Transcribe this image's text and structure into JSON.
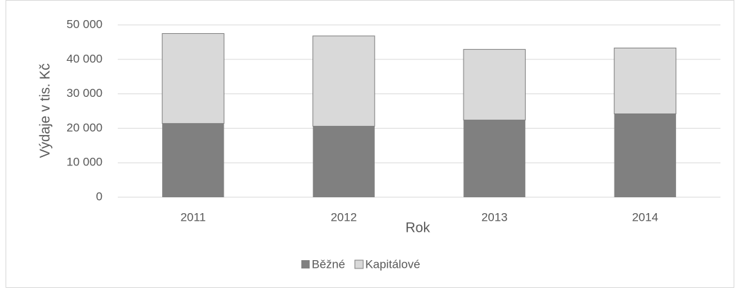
{
  "chart_data": {
    "type": "stacked_bar",
    "y_label": "Výdaje v tis. Kč",
    "x_label": "Rok",
    "categories": [
      "2011",
      "2012",
      "2013",
      "2014"
    ],
    "series": [
      {
        "name": "Běžné",
        "color": "#808080",
        "values": [
          21400,
          20600,
          22400,
          24200
        ]
      },
      {
        "name": "Kapitálové",
        "color": "#d9d9d9",
        "values": [
          26100,
          26200,
          20500,
          19100
        ]
      }
    ],
    "ylim": [
      0,
      50000
    ],
    "yticks": [
      0,
      {
        "value": 10000,
        "label": "10 000"
      },
      {
        "value": 20000,
        "label": "20 000"
      },
      {
        "value": 30000,
        "label": "30 000"
      },
      {
        "value": 40000,
        "label": "40 000"
      },
      {
        "value": 50000,
        "label": "50 000"
      }
    ],
    "grid": true,
    "legend": "bottom"
  }
}
